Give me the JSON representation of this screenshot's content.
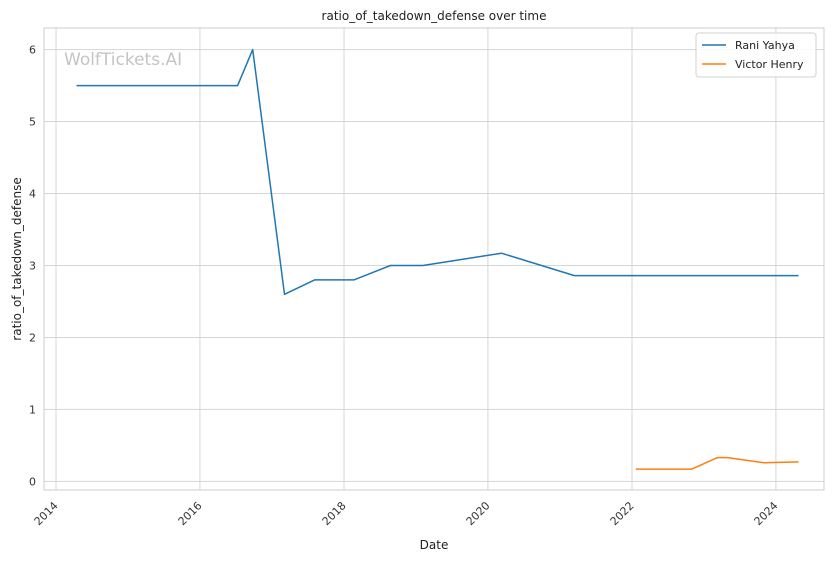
{
  "chart_data": {
    "type": "line",
    "title": "ratio_of_takedown_defense over time",
    "xlabel": "Date",
    "ylabel": "ratio_of_takedown_defense",
    "watermark": "WolfTickets.AI",
    "x_ticks": [
      "2014",
      "2016",
      "2018",
      "2020",
      "2022",
      "2024"
    ],
    "y_ticks": [
      "0",
      "1",
      "2",
      "3",
      "4",
      "5",
      "6"
    ],
    "xlim": [
      "2013-11-01",
      "2024-09-01"
    ],
    "ylim": [
      -0.12,
      6.3
    ],
    "grid": true,
    "legend_position": "top-right",
    "series": [
      {
        "name": "Rani Yahya",
        "color": "#1f77b4",
        "points": [
          {
            "x": "2014-04-15",
            "y": 5.5
          },
          {
            "x": "2016-07-10",
            "y": 5.5
          },
          {
            "x": "2016-09-25",
            "y": 6.0
          },
          {
            "x": "2017-03-05",
            "y": 2.6
          },
          {
            "x": "2017-08-05",
            "y": 2.8
          },
          {
            "x": "2018-02-20",
            "y": 2.8
          },
          {
            "x": "2018-08-25",
            "y": 3.0
          },
          {
            "x": "2019-02-05",
            "y": 3.0
          },
          {
            "x": "2020-03-10",
            "y": 3.17
          },
          {
            "x": "2021-03-15",
            "y": 2.86
          },
          {
            "x": "2024-04-25",
            "y": 2.86
          }
        ]
      },
      {
        "name": "Victor Henry",
        "color": "#ff7f0e",
        "points": [
          {
            "x": "2022-01-20",
            "y": 0.17
          },
          {
            "x": "2022-11-01",
            "y": 0.17
          },
          {
            "x": "2023-03-10",
            "y": 0.33
          },
          {
            "x": "2023-05-01",
            "y": 0.33
          },
          {
            "x": "2023-11-01",
            "y": 0.26
          },
          {
            "x": "2024-04-25",
            "y": 0.27
          }
        ]
      }
    ]
  }
}
